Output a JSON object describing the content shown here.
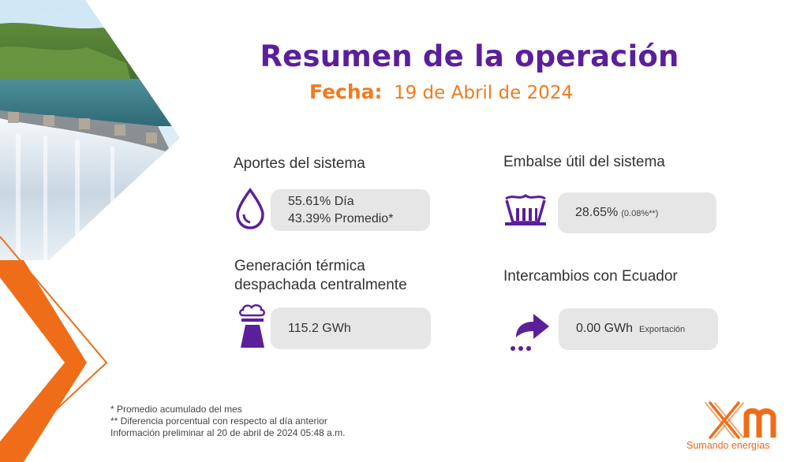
{
  "header": {
    "title": "Resumen de la operación",
    "date_label": "Fecha:",
    "date_value": "19 de Abril de 2024"
  },
  "sections": {
    "aportes": {
      "title": "Aportes del sistema",
      "line1_value": "55.61%",
      "line1_label": "Día",
      "line2_value": "43.39%",
      "line2_label": "Promedio*",
      "icon": "water-drop-icon"
    },
    "embalse": {
      "title": "Embalse útil del sistema",
      "value": "28.65%",
      "diff": "(0.08%**)",
      "icon": "dam-icon"
    },
    "generacion": {
      "title_line1": "Generación térmica",
      "title_line2": "despachada centralmente",
      "value": "115.2 GWh",
      "icon": "thermal-plant-icon"
    },
    "intercambios": {
      "title": "Intercambios con Ecuador",
      "value": "0.00 GWh",
      "label": "Exportación",
      "icon": "export-arrow-icon"
    }
  },
  "footnotes": [
    "* Promedio acumulado del mes",
    "** Diferencia porcentual con respecto al día anterior",
    " Información preliminar al 20 de abril de 2024 05:48 a.m."
  ],
  "brand": {
    "tagline": "Sumando energías",
    "primary_color": "#5b1f9a",
    "accent_color": "#f07b1d"
  }
}
